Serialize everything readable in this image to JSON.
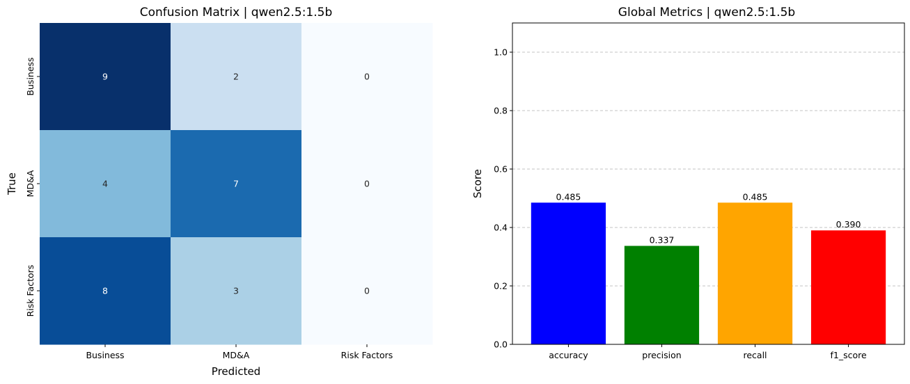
{
  "chart_data": [
    {
      "type": "heatmap",
      "title": "Confusion Matrix | qwen2.5:1.5b",
      "xlabel": "Predicted",
      "ylabel": "True",
      "x_categories": [
        "Business",
        "MD&A",
        "Risk Factors"
      ],
      "y_categories": [
        "Business",
        "MD&A",
        "Risk Factors"
      ],
      "values": [
        [
          9,
          2,
          0
        ],
        [
          4,
          7,
          0
        ],
        [
          8,
          3,
          0
        ]
      ],
      "colormap": "Blues",
      "colorbar": false
    },
    {
      "type": "bar",
      "title": "Global Metrics | qwen2.5:1.5b",
      "xlabel": "",
      "ylabel": "Score",
      "categories": [
        "accuracy",
        "precision",
        "recall",
        "f1_score"
      ],
      "values": [
        0.485,
        0.337,
        0.485,
        0.39
      ],
      "value_labels": [
        "0.485",
        "0.337",
        "0.485",
        "0.390"
      ],
      "colors": [
        "#0000ff",
        "#008000",
        "#ffa500",
        "#ff0000"
      ],
      "ylim": [
        0,
        1.1
      ],
      "yticks": [
        "0.0",
        "0.2",
        "0.4",
        "0.6",
        "0.8",
        "1.0"
      ],
      "grid": "y-dashed"
    }
  ]
}
